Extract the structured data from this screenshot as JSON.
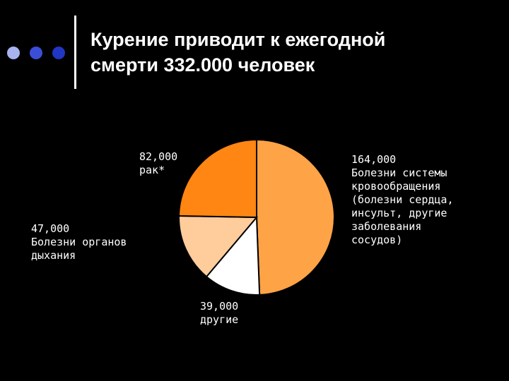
{
  "slide": {
    "title_line1": "Курение приводит к ежегодной",
    "title_line2": "смерти 332.000 человек",
    "bullet_colors": [
      "#a9b3f0",
      "#3b4fd6",
      "#2236c4"
    ]
  },
  "chart_data": {
    "type": "pie",
    "total": 332000,
    "start_angle_deg": 0,
    "direction": "clockwise",
    "slices": [
      {
        "value": 164000,
        "value_label": "164,000",
        "label": "Болезни системы кровообращения (болезни сердца, инсульт, другие заболевания сосудов)",
        "label_lines": [
          "Болезни системы",
          "кровообращения",
          "(болезни сердца,",
          "инсульт, другие",
          "заболевания",
          "сосудов)"
        ],
        "color": "#ffa347"
      },
      {
        "value": 39000,
        "value_label": "39,000",
        "label": "другие",
        "label_lines": [
          "другие"
        ],
        "color": "#ffffff"
      },
      {
        "value": 47000,
        "value_label": "47,000",
        "label": "Болезни органов дыхания",
        "label_lines": [
          "Болезни органов",
          "дыхания"
        ],
        "color": "#ffcc9c"
      },
      {
        "value": 82000,
        "value_label": "82,000",
        "label": "рак*",
        "label_lines": [
          "рак*"
        ],
        "color": "#ff8612"
      }
    ]
  }
}
